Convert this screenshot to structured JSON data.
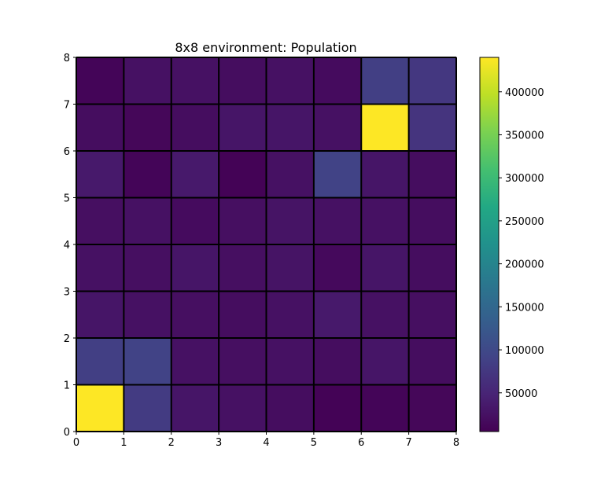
{
  "chart_data": {
    "type": "heatmap",
    "title": "8x8 environment: Population",
    "xlabel": "",
    "ylabel": "",
    "xlim": [
      0,
      8
    ],
    "ylim": [
      0,
      8
    ],
    "x_ticks": [
      "0",
      "1",
      "2",
      "3",
      "4",
      "5",
      "6",
      "7",
      "8"
    ],
    "y_ticks": [
      "0",
      "1",
      "2",
      "3",
      "4",
      "5",
      "6",
      "7",
      "8"
    ],
    "colormap": "viridis",
    "grid_line_color": "#000000",
    "colorbar": {
      "min": 5000,
      "max": 440000,
      "ticks": [
        50000,
        100000,
        150000,
        200000,
        250000,
        300000,
        350000,
        400000
      ],
      "tick_labels": [
        "50000",
        "100000",
        "150000",
        "200000",
        "250000",
        "300000",
        "350000",
        "400000"
      ]
    },
    "rows_bottom_to_top": [
      [
        440000,
        80000,
        30000,
        25000,
        20000,
        8000,
        10000,
        12000
      ],
      [
        85000,
        90000,
        25000,
        22000,
        25000,
        20000,
        30000,
        20000
      ],
      [
        30000,
        25000,
        22000,
        20000,
        25000,
        35000,
        25000,
        22000
      ],
      [
        25000,
        22000,
        30000,
        22000,
        28000,
        15000,
        30000,
        20000
      ],
      [
        22000,
        25000,
        18000,
        22000,
        28000,
        25000,
        25000,
        20000
      ],
      [
        35000,
        10000,
        35000,
        8000,
        25000,
        90000,
        30000,
        20000
      ],
      [
        20000,
        12000,
        20000,
        30000,
        30000,
        25000,
        440000,
        70000
      ],
      [
        10000,
        25000,
        25000,
        20000,
        25000,
        18000,
        85000,
        75000
      ]
    ]
  }
}
